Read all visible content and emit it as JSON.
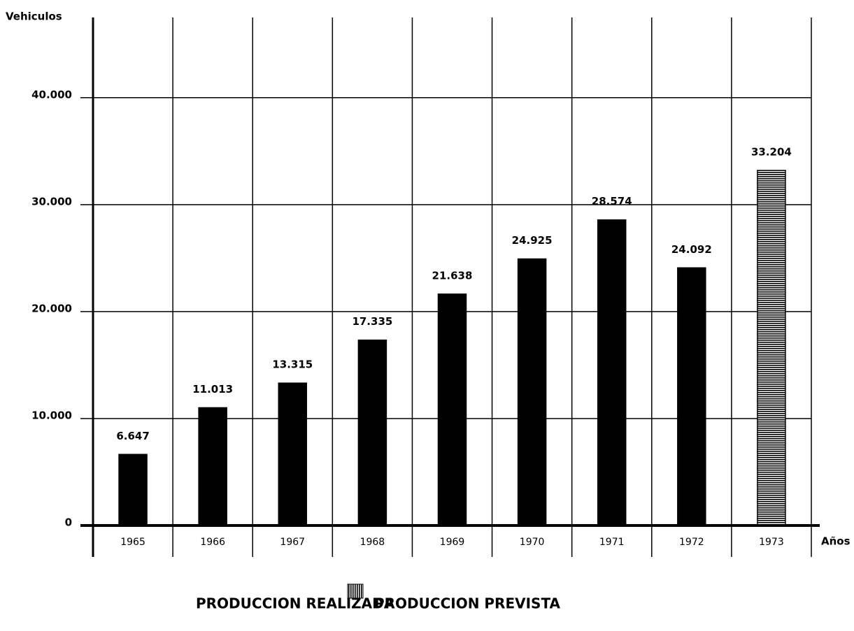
{
  "chart_data": {
    "type": "bar",
    "y_label": "Vehiculos",
    "x_label": "Años",
    "categories": [
      "1965",
      "1966",
      "1967",
      "1968",
      "1969",
      "1970",
      "1971",
      "1972",
      "1973"
    ],
    "series": [
      {
        "name": "PRODUCCION REALIZADA",
        "color": "#000000",
        "values": [
          6647,
          11013,
          13315,
          17335,
          21638,
          24925,
          28574,
          24092,
          null
        ],
        "value_labels": [
          "6.647",
          "11.013",
          "13.315",
          "17.335",
          "21.638",
          "24.925",
          "28.574",
          "24.092",
          null
        ]
      },
      {
        "name": "PRODUCCION PREVISTA",
        "color": "#000000",
        "hatch": true,
        "values": [
          null,
          null,
          null,
          null,
          null,
          null,
          null,
          null,
          33204
        ],
        "value_labels": [
          null,
          null,
          null,
          null,
          null,
          null,
          null,
          null,
          "33.204"
        ]
      }
    ],
    "ylim": [
      0,
      47500
    ],
    "yticks": [
      0,
      {
        "value": 10000,
        "label": "10.000"
      },
      {
        "value": 20000,
        "label": "20.000"
      },
      {
        "value": 30000,
        "label": "30.000"
      },
      {
        "value": 40000,
        "label": "40.000"
      }
    ],
    "grid": true
  }
}
